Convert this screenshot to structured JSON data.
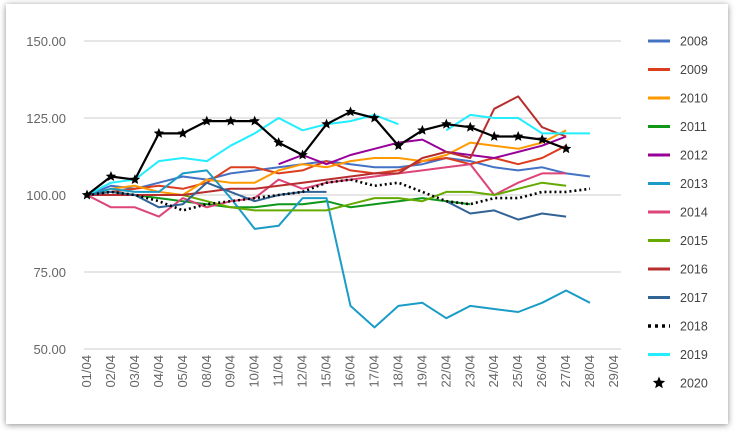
{
  "chart_data": {
    "type": "line",
    "title": "",
    "xlabel": "",
    "ylabel": "",
    "ylim": [
      50,
      150
    ],
    "yticks": [
      "150.00",
      "125.00",
      "100.00",
      "75.00",
      "50.00"
    ],
    "ytick_values": [
      150,
      125,
      100,
      75,
      50
    ],
    "grid": true,
    "legend_position": "right",
    "categories": [
      "01/04",
      "02/04",
      "03/04",
      "04/04",
      "05/04",
      "08/04",
      "09/04",
      "10/04",
      "11/04",
      "12/04",
      "15/04",
      "16/04",
      "17/04",
      "18/04",
      "19/04",
      "22/04",
      "23/04",
      "24/04",
      "25/04",
      "26/04",
      "27/04",
      "28/04",
      "29/04"
    ],
    "series": [
      {
        "name": "2008",
        "color": "#4472c4",
        "dash": "",
        "marker": "",
        "values": [
          100,
          103,
          102,
          104,
          106,
          105,
          107,
          108,
          109,
          110,
          111,
          110,
          109,
          109,
          110,
          112,
          111,
          109,
          108,
          109,
          107,
          106,
          null
        ]
      },
      {
        "name": "2009",
        "color": "#db3e1f",
        "dash": "",
        "marker": "",
        "values": [
          100,
          101,
          102,
          103,
          102,
          104,
          109,
          109,
          107,
          108,
          111,
          108,
          107,
          108,
          111,
          112,
          110,
          112,
          110,
          112,
          116,
          null,
          null
        ]
      },
      {
        "name": "2010",
        "color": "#ff9900",
        "dash": "",
        "marker": "",
        "values": [
          100,
          102,
          103,
          101,
          100,
          105,
          104,
          104,
          108,
          110,
          109,
          111,
          112,
          112,
          111,
          113,
          117,
          116,
          115,
          117,
          121,
          null,
          null
        ]
      },
      {
        "name": "2011",
        "color": "#109618",
        "dash": "",
        "marker": "",
        "values": [
          100,
          101,
          100,
          99,
          98,
          97,
          96,
          96,
          97,
          97,
          98,
          96,
          97,
          98,
          99,
          98,
          97,
          null,
          null,
          null,
          null,
          null,
          null
        ]
      },
      {
        "name": "2012",
        "color": "#990099",
        "dash": "",
        "marker": "",
        "values": [
          null,
          null,
          null,
          null,
          null,
          null,
          null,
          null,
          110,
          113,
          110,
          113,
          115,
          117,
          118,
          114,
          113,
          112,
          114,
          116,
          119,
          null,
          null
        ]
      },
      {
        "name": "2013",
        "color": "#1a9cc7",
        "dash": "",
        "marker": "",
        "values": [
          100,
          102,
          101,
          101,
          107,
          108,
          99,
          89,
          90,
          99,
          99,
          64,
          57,
          64,
          65,
          60,
          64,
          63,
          62,
          65,
          69,
          65,
          null
        ]
      },
      {
        "name": "2014",
        "color": "#dd4477",
        "dash": "",
        "marker": "",
        "values": [
          100,
          96,
          96,
          93,
          99,
          96,
          98,
          99,
          105,
          102,
          104,
          105,
          106,
          107,
          108,
          109,
          110,
          100,
          104,
          107,
          107,
          null,
          null
        ]
      },
      {
        "name": "2015",
        "color": "#66aa00",
        "dash": "",
        "marker": "",
        "values": [
          100,
          100,
          100,
          100,
          100,
          98,
          96,
          95,
          95,
          95,
          95,
          97,
          99,
          99,
          98,
          101,
          101,
          100,
          102,
          104,
          103,
          null,
          null
        ]
      },
      {
        "name": "2016",
        "color": "#b82e2e",
        "dash": "",
        "marker": "",
        "values": [
          100,
          100,
          100,
          100,
          100,
          101,
          102,
          102,
          103,
          104,
          105,
          106,
          107,
          107,
          112,
          114,
          112,
          128,
          132,
          122,
          119,
          null,
          null
        ]
      },
      {
        "name": "2017",
        "color": "#316395",
        "dash": "",
        "marker": "",
        "values": [
          100,
          101,
          100,
          96,
          97,
          104,
          101,
          98,
          100,
          101,
          101,
          null,
          null,
          null,
          null,
          98,
          94,
          95,
          92,
          94,
          93,
          null,
          null
        ]
      },
      {
        "name": "2018",
        "color": "#000000",
        "dash": "2,3",
        "marker": "",
        "values": [
          100,
          101,
          100,
          98,
          95,
          97,
          98,
          99,
          100,
          101,
          104,
          105,
          103,
          104,
          101,
          98,
          97,
          99,
          99,
          101,
          101,
          102,
          null
        ]
      },
      {
        "name": "2019",
        "color": "#22eeff",
        "dash": "",
        "marker": "",
        "values": [
          100,
          104,
          105,
          111,
          112,
          111,
          116,
          120,
          125,
          121,
          123,
          124,
          126,
          123,
          null,
          121,
          126,
          125,
          125,
          120,
          120,
          120,
          null
        ]
      },
      {
        "name": "2020",
        "color": "#000000",
        "dash": "",
        "marker": "star",
        "values": [
          100,
          106,
          105,
          120,
          120,
          124,
          124,
          124,
          117,
          113,
          123,
          127,
          125,
          116,
          121,
          123,
          122,
          119,
          119,
          118,
          115,
          null,
          null
        ]
      }
    ]
  }
}
